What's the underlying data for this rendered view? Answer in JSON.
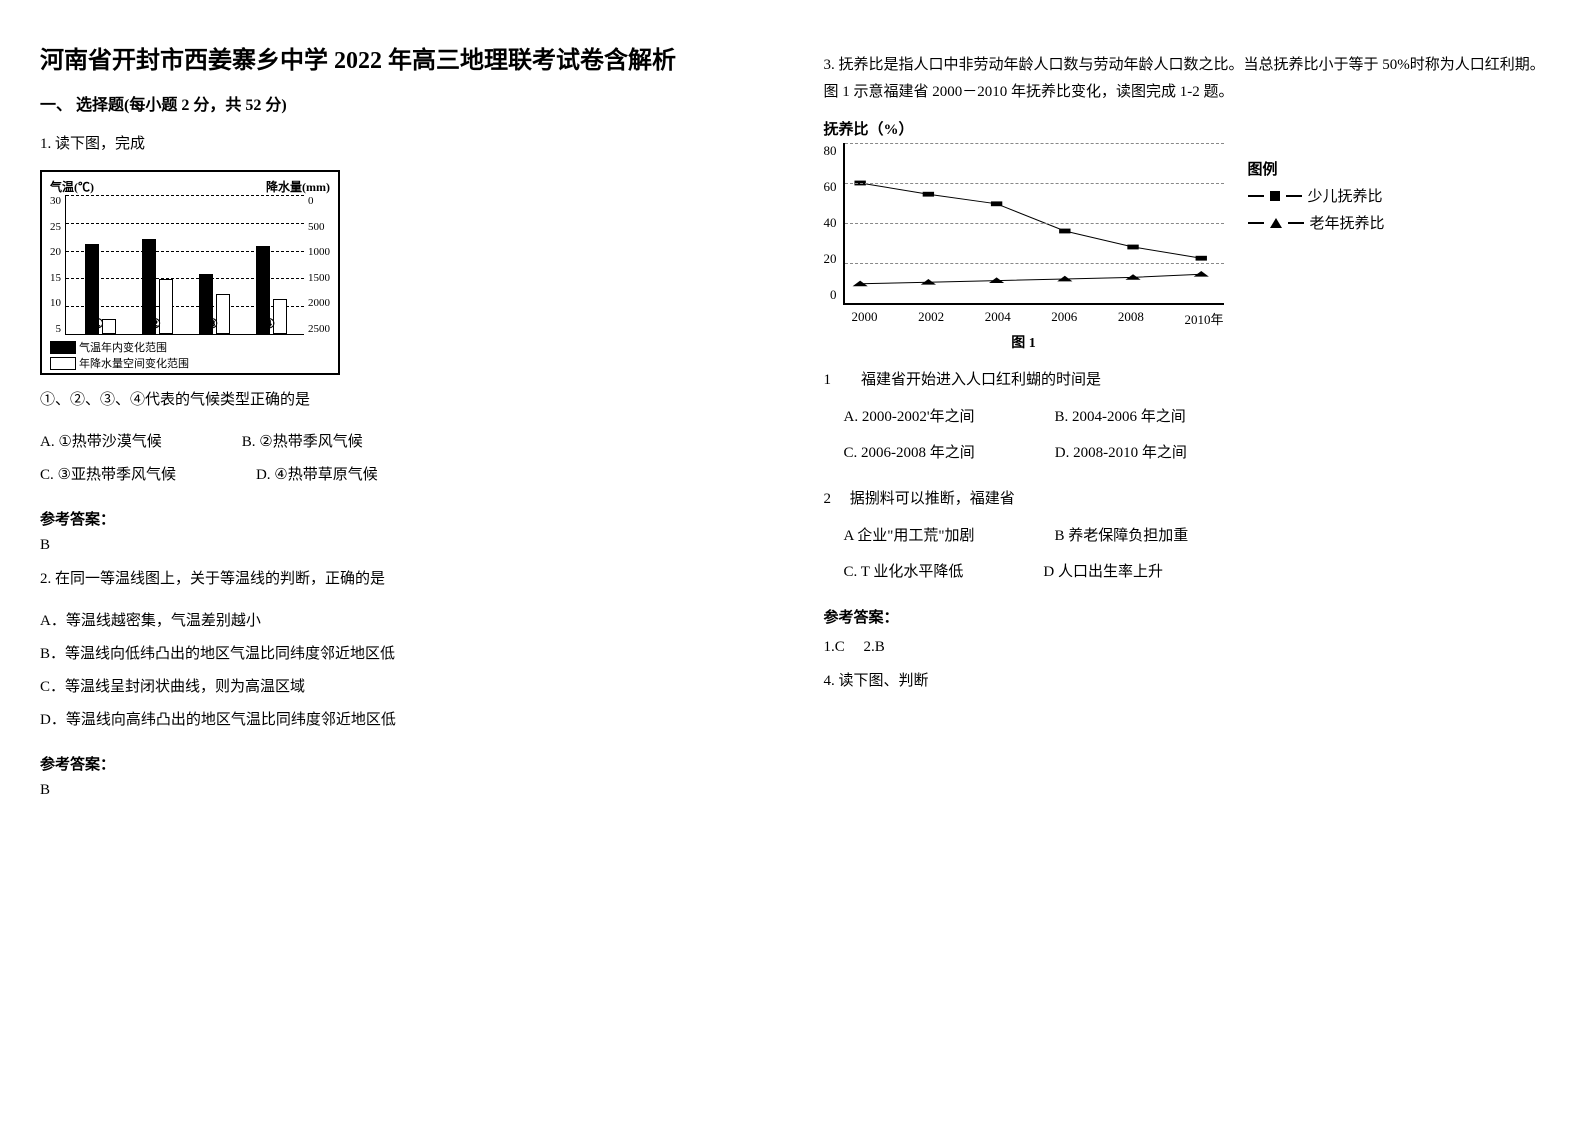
{
  "title": "河南省开封市西姜寨乡中学 2022 年高三地理联考试卷含解析",
  "section1": "一、 选择题(每小题 2 分，共 52 分)",
  "q1": {
    "stem": "1. 读下图，完成",
    "chart": {
      "type": "bar+line-combo",
      "left_axis_label": "气温(℃)",
      "right_axis_label": "降水量(mm)",
      "left_ticks": [
        "30",
        "25",
        "20",
        "15",
        "10",
        "5"
      ],
      "right_ticks": [
        "0",
        "500",
        "1000",
        "1500",
        "2000",
        "2500"
      ],
      "grid_positions_pct": [
        0,
        20,
        40,
        60,
        80
      ],
      "groups": [
        {
          "label": "①",
          "black_h": 90,
          "white_h": 15,
          "left_pct": 8
        },
        {
          "label": "②",
          "black_h": 95,
          "white_h": 55,
          "left_pct": 32
        },
        {
          "label": "③",
          "black_h": 60,
          "white_h": 40,
          "left_pct": 56
        },
        {
          "label": "④",
          "black_h": 88,
          "white_h": 35,
          "left_pct": 80
        }
      ],
      "legend": [
        {
          "swatch": "#000000",
          "label": "气温年内变化范围"
        },
        {
          "swatch": "#ffffff",
          "label": "年降水量空间变化范围"
        }
      ]
    },
    "sub": "①、②、③、④代表的气候类型正确的是",
    "opts": [
      [
        "A.  ①热带沙漠气候",
        "B.  ②热带季风气候"
      ],
      [
        "C.  ③亚热带季风气候",
        "D.  ④热带草原气候"
      ]
    ],
    "answer_label": "参考答案：",
    "answer": "B"
  },
  "q2": {
    "stem": "2. 在同一等温线图上，关于等温线的判断，正确的是",
    "opts": [
      "A．等温线越密集，气温差别越小",
      "B．等温线向低纬凸出的地区气温比同纬度邻近地区低",
      "C．等温线呈封闭状曲线，则为高温区域",
      "D．等温线向高纬凸出的地区气温比同纬度邻近地区低"
    ],
    "answer_label": "参考答案：",
    "answer": "B"
  },
  "q3": {
    "intro": "3. 抚养比是指人口中非劳动年龄人口数与劳动年龄人口数之比。当总抚养比小于等于 50%时称为人口红利期。图 1 示意福建省 2000－2010 年抚养比变化，读图完成 1-2 题。",
    "chart": {
      "type": "line",
      "title": "抚养比（%）",
      "y_ticks": [
        "80",
        "60",
        "40",
        "20",
        "0"
      ],
      "y_max": 80,
      "x_labels": [
        "2000",
        "2002",
        "2004",
        "2006",
        "2008",
        "2010年"
      ],
      "grid_positions_pct": [
        0,
        25,
        50,
        75
      ],
      "caption": "图 1",
      "series": [
        {
          "name": "少儿抚养比",
          "marker": "square",
          "points_pct": [
            [
              4,
              25
            ],
            [
              22,
              32
            ],
            [
              40,
              38
            ],
            [
              58,
              55
            ],
            [
              76,
              65
            ],
            [
              94,
              72
            ]
          ]
        },
        {
          "name": "老年抚养比",
          "marker": "triangle",
          "points_pct": [
            [
              4,
              88
            ],
            [
              22,
              87
            ],
            [
              40,
              86
            ],
            [
              58,
              85
            ],
            [
              76,
              84
            ],
            [
              94,
              82
            ]
          ]
        }
      ],
      "legend_title": "图例",
      "legend": [
        {
          "marker": "square",
          "label": "少儿抚养比"
        },
        {
          "marker": "triangle",
          "label": "老年抚养比"
        }
      ]
    },
    "sub1": {
      "stem": "1　　福建省开始进入人口红利蝴的时间是",
      "opts": [
        [
          "A.  2000-2002'年之间",
          "B.  2004-2006 年之间"
        ],
        [
          "C.  2006-2008 年之间",
          "D.  2008-2010 年之间"
        ]
      ]
    },
    "sub2": {
      "stem": "2　 据捌料可以推断，福建省",
      "opts": [
        [
          "A 企业\"用工荒\"加剧",
          "B 养老保障负担加重"
        ],
        [
          "C.  T 业化水平降低",
          "D 人口出生率上升"
        ]
      ]
    },
    "answer_label": "参考答案：",
    "answer": "1.C　 2.B"
  },
  "q4": {
    "stem": "4. 读下图、判断"
  }
}
